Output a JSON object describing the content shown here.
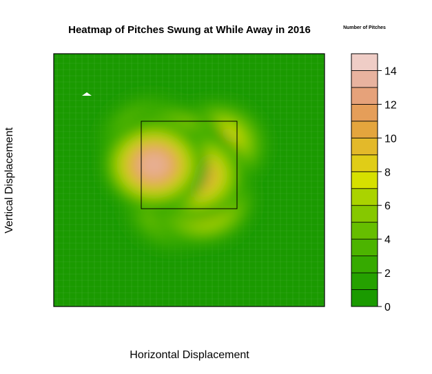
{
  "chart_data": {
    "type": "heatmap",
    "title": "Heatmap of Pitches Swung at While Away in 2016",
    "xlabel": "Horizontal Displacement",
    "ylabel": "Vertical Displacement",
    "legend_title": "Number of Pitches",
    "legend_placement": "right",
    "value_range": [
      0,
      15
    ],
    "legend_levels": [
      0,
      1,
      2,
      3,
      4,
      5,
      6,
      7,
      8,
      9,
      10,
      11,
      12,
      13,
      14,
      15
    ],
    "legend_ticks": [
      "0",
      "2",
      "4",
      "6",
      "8",
      "10",
      "12",
      "14"
    ],
    "legend_colors": [
      "#1a9a00",
      "#25a100",
      "#36aa00",
      "#4cb400",
      "#66be00",
      "#86c800",
      "#aad300",
      "#d6e000",
      "#e0cd17",
      "#e3b92a",
      "#e4a53d",
      "#e59e59",
      "#e6a27a",
      "#e8b39f",
      "#efcdc6",
      "#f2f2f2"
    ],
    "background_color": "#1a9a00",
    "strike_zone": "rectangle outlined in black",
    "hotspots": [
      {
        "x": 0.52,
        "y": 0.52,
        "value": 11.5
      },
      {
        "x": 0.37,
        "y": 0.56,
        "value": 13.8
      },
      {
        "x": 0.44,
        "y": 0.62,
        "value": 10.5
      },
      {
        "x": 0.6,
        "y": 0.64,
        "value": 9.5
      },
      {
        "x": 0.55,
        "y": 0.42,
        "value": 10.5
      },
      {
        "x": 0.45,
        "y": 0.4,
        "value": 8.0
      },
      {
        "x": 0.36,
        "y": 0.66,
        "value": 7.5
      }
    ]
  }
}
